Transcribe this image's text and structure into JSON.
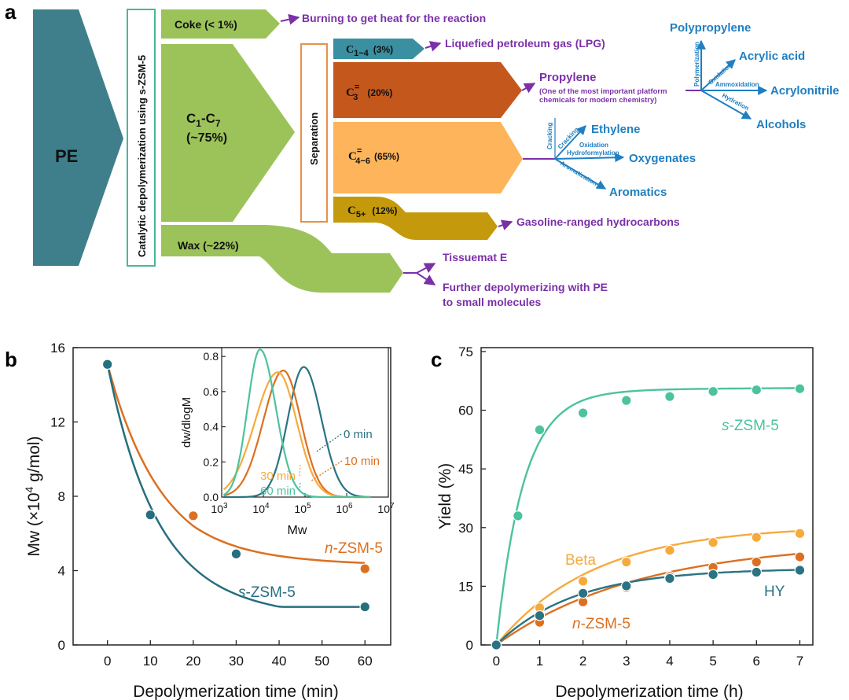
{
  "panel_labels": {
    "a": "a",
    "b": "b",
    "c": "c"
  },
  "colors": {
    "pe": "#3f7f8c",
    "green": "#9cc35a",
    "teal": "#3a8fa0",
    "orange_dark": "#c4581c",
    "orange_light": "#fdb45a",
    "gold": "#c49a0c",
    "purple": "#7b30a8",
    "blue": "#1f7fc2",
    "s_zsm5_b": "#256f7f",
    "n_zsm5": "#dc7020",
    "s_zsm5_c": "#4cc29e",
    "beta": "#f7aa3c",
    "hy": "#2a7383",
    "min0": "#2a7383",
    "min10": "#dc7020",
    "min30": "#f7aa3c",
    "min60": "#4cc29e"
  },
  "flow": {
    "pe": "PE",
    "catalysis_label": "Catalytic depolymerization using s-ZSM-5",
    "coke": "Coke (< 1%)",
    "c1c7_line1": "C",
    "c1c7_sub1": "1",
    "c1c7_dash": "-C",
    "c1c7_sub2": "7",
    "c1c7_line2": "(~75%)",
    "wax": "Wax (~22%)",
    "separation": "Separation",
    "c14_main": "C",
    "c14_sub": "1−4",
    "c14_pct": "(3%)",
    "c3_main": "C",
    "c3_sup": "=",
    "c3_sub": "3",
    "c3_pct": "(20%)",
    "c46_main": "C",
    "c46_sup": "=",
    "c46_sub": "4−6",
    "c46_pct": "(65%)",
    "c5_main": "C",
    "c5_sub": "5+",
    "c5_pct": "(12%)",
    "burning": "Burning to get heat for the reaction",
    "lpg": "Liquefied petroleum gas (LPG)",
    "propylene": "Propylene",
    "propylene_note1": "(One of the most important platform",
    "propylene_note2": "chemicals for modern chemistry)",
    "polypropylene": "Polypropylene",
    "acrylic_acid": "Acrylic acid",
    "acrylonitrile": "Acrylonitrile",
    "alcohols": "Alcohols",
    "polymerization": "Polymerization",
    "oxidation": "Oxidation",
    "ammoxidation": "Ammoxidation",
    "hydration": "Hydration",
    "ethylene": "Ethylene",
    "oxygenates": "Oxygenates",
    "aromatics": "Aromatics",
    "cracking1": "Cracking",
    "cracking2": "Cracking",
    "oxidation2": "Oxidation",
    "hydroformylation": "Hydroformylation",
    "aromatization": "Aromatization",
    "gasoline": "Gasoline-ranged hydrocarbons",
    "tissuemat": "Tissuemat E",
    "further1": "Further depolymerizing with PE",
    "further2": "to small molecules"
  },
  "chart_data": [
    {
      "type": "scatter",
      "xlabel": "Depolymerization time (min)",
      "ylabel_main": "Mw (×10",
      "ylabel_sup": "4",
      "ylabel_end": " g/mol)",
      "xlim": [
        -8,
        66
      ],
      "ylim": [
        0,
        16
      ],
      "xticks": [
        0,
        10,
        20,
        30,
        40,
        50,
        60
      ],
      "yticks": [
        0,
        4,
        8,
        12,
        16
      ],
      "series": [
        {
          "name": "n-ZSM-5",
          "x": [
            0,
            20,
            60
          ],
          "y": [
            15.1,
            6.95,
            4.1
          ]
        },
        {
          "name": "s-ZSM-5",
          "x": [
            0,
            10,
            30,
            60
          ],
          "y": [
            15.1,
            7.0,
            4.9,
            2.05
          ]
        }
      ],
      "legend_labels": {
        "n_italic": "n",
        "n_rest": "-ZSM-5",
        "s_italic": "s",
        "s_rest": "-ZSM-5"
      },
      "inset": {
        "type": "line",
        "xlabel": "Mw",
        "ylabel": "dw/dlogM",
        "xscale": "log",
        "xlim_log10": [
          3,
          7
        ],
        "ylim": [
          0,
          0.85
        ],
        "xtick_base": "10",
        "xtick_exp": [
          "3",
          "4",
          "5",
          "6",
          "7"
        ],
        "yticks": [
          "0.0",
          "0.2",
          "0.4",
          "0.6",
          "0.8"
        ],
        "series": [
          {
            "name": "0 min",
            "peak_log10": 4.97,
            "peak": 0.74
          },
          {
            "name": "10 min",
            "peak_log10": 4.48,
            "peak": 0.72
          },
          {
            "name": "30 min",
            "peak_log10": 4.35,
            "peak": 0.71
          },
          {
            "name": "60 min",
            "peak_log10": 3.92,
            "peak": 0.84
          }
        ]
      }
    },
    {
      "type": "scatter",
      "xlabel": "Depolymerization time (h)",
      "ylabel": "Yield (%)",
      "xlim": [
        -0.35,
        7.3
      ],
      "ylim": [
        0,
        76
      ],
      "xticks": [
        0,
        1,
        2,
        3,
        4,
        5,
        6,
        7
      ],
      "yticks": [
        0,
        15,
        30,
        45,
        60,
        75
      ],
      "series": [
        {
          "name": "s-ZSM-5",
          "x": [
            0,
            0.5,
            1,
            2,
            3,
            4,
            5,
            6,
            7
          ],
          "y": [
            0,
            33,
            55,
            59.3,
            62.5,
            63.5,
            64.8,
            65.2,
            65.5
          ]
        },
        {
          "name": "Beta",
          "x": [
            0,
            1,
            2,
            3,
            4,
            5,
            6,
            7
          ],
          "y": [
            0,
            9.5,
            16.3,
            21.2,
            24.2,
            26.2,
            27.5,
            28.5
          ]
        },
        {
          "name": "n-ZSM-5",
          "x": [
            0,
            1,
            2,
            3,
            4,
            5,
            6,
            7
          ],
          "y": [
            0,
            5.8,
            11,
            14.7,
            17.5,
            19.8,
            21.2,
            22.5
          ]
        },
        {
          "name": "HY",
          "x": [
            0,
            1,
            2,
            3,
            4,
            5,
            6,
            7
          ],
          "y": [
            0,
            7.5,
            13.2,
            15.1,
            17,
            18,
            18.6,
            19.1
          ]
        }
      ],
      "legend_labels": {
        "s_italic": "s",
        "s_rest": "-ZSM-5",
        "beta": "Beta",
        "n_italic": "n",
        "n_rest": "-ZSM-5",
        "hy": "HY"
      }
    }
  ]
}
